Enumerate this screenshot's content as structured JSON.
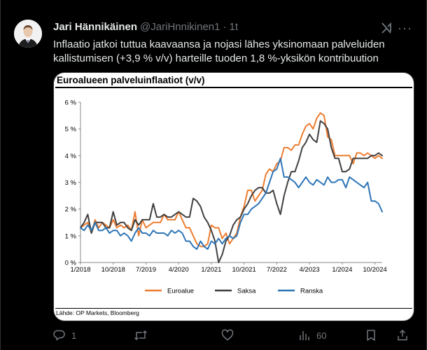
{
  "tweet": {
    "author_name": "Jari Hännikäinen",
    "handle": "@JariHnnikinen1",
    "time": "1t",
    "text": "Inflaatio jatkoi tuttua kaavaansa ja nojasi lähes yksinomaan palveluiden kallistumisen (+3,9 % v/v) harteille tuoden 1,8 %-yksikön kontribuution"
  },
  "actions": {
    "reply_count": "1",
    "retweet_count": "",
    "like_count": "",
    "views_count": "60"
  },
  "chart_data": {
    "type": "line",
    "title": "Euroalueen palveluinflaatiot (v/v)",
    "source": "Lähde: OP Markets, Bloomberg",
    "xlabel": "",
    "ylabel": "",
    "ylim": [
      0,
      6
    ],
    "yticks": [
      "0 %",
      "1 %",
      "2 %",
      "3 %",
      "4 %",
      "5 %",
      "6 %"
    ],
    "xticks": [
      "1/2018",
      "10/2018",
      "7/2019",
      "4/2020",
      "1/2021",
      "10/2021",
      "7/2022",
      "4/2023",
      "1/2024",
      "10/2024"
    ],
    "x_start": "2018-01",
    "x_end": "2024-12",
    "grid": false,
    "legend_position": "bottom",
    "series": [
      {
        "name": "Euroalue",
        "color": "#ed7d31",
        "values": [
          1.3,
          1.4,
          1.5,
          1.1,
          1.6,
          1.3,
          1.5,
          1.4,
          1.3,
          1.6,
          1.3,
          1.4,
          1.3,
          1.4,
          1.2,
          1.9,
          1.0,
          1.6,
          1.3,
          1.4,
          1.5,
          1.5,
          1.5,
          1.8,
          1.6,
          1.6,
          1.6,
          1.9,
          1.6,
          1.3,
          1.3,
          1.0,
          0.7,
          0.6,
          0.6,
          0.7,
          1.4,
          1.3,
          1.3,
          0.9,
          1.1,
          0.7,
          0.9,
          1.1,
          1.7,
          2.1,
          2.7,
          2.7,
          2.3,
          2.5,
          2.7,
          3.3,
          3.5,
          3.4,
          3.7,
          3.8,
          4.3,
          4.3,
          4.2,
          4.4,
          4.4,
          4.8,
          5.1,
          5.2,
          5.0,
          5.4,
          5.6,
          5.5,
          4.7,
          4.6,
          4.0,
          4.0,
          4.0,
          4.0,
          4.0,
          3.7,
          4.1,
          4.1,
          4.0,
          4.1,
          4.0,
          3.9,
          4.0,
          3.9
        ]
      },
      {
        "name": "Saksa",
        "color": "#404040",
        "values": [
          1.3,
          1.5,
          1.8,
          1.1,
          1.5,
          1.5,
          1.5,
          1.3,
          1.3,
          1.9,
          1.4,
          1.5,
          1.5,
          1.3,
          1.2,
          1.6,
          1.4,
          1.6,
          1.6,
          1.6,
          2.2,
          1.7,
          1.7,
          1.8,
          1.7,
          1.7,
          1.8,
          1.9,
          1.8,
          1.7,
          1.7,
          2.4,
          2.3,
          2.1,
          1.7,
          1.5,
          1.2,
          0.8,
          0.0,
          0.3,
          0.8,
          1.0,
          1.4,
          1.6,
          1.7,
          2.0,
          2.2,
          2.5,
          2.7,
          2.8,
          2.8,
          2.6,
          2.6,
          2.7,
          2.2,
          1.8,
          2.5,
          3.0,
          3.4,
          3.4,
          3.8,
          4.3,
          4.5,
          4.8,
          4.6,
          4.5,
          5.3,
          5.2,
          5.0,
          4.3,
          3.9,
          3.9,
          3.4,
          3.4,
          3.5,
          3.9,
          3.9,
          3.9,
          3.9,
          3.9,
          4.0,
          4.0,
          4.1,
          4.0
        ]
      },
      {
        "name": "Ranska",
        "color": "#2e75b6",
        "values": [
          1.3,
          1.2,
          1.4,
          1.2,
          1.5,
          1.2,
          1.2,
          1.3,
          1.1,
          1.2,
          1.2,
          1.0,
          1.1,
          1.0,
          0.8,
          1.1,
          1.3,
          1.1,
          1.1,
          1.0,
          1.2,
          1.1,
          1.1,
          1.1,
          1.0,
          1.2,
          1.1,
          1.2,
          1.1,
          0.8,
          0.8,
          0.6,
          0.5,
          0.8,
          0.6,
          0.5,
          0.8,
          0.7,
          0.9,
          0.7,
          0.9,
          1.0,
          0.9,
          1.0,
          1.5,
          1.8,
          1.8,
          2.0,
          2.1,
          2.2,
          2.4,
          2.6,
          3.0,
          3.4,
          3.5,
          3.9,
          3.2,
          3.2,
          3.1,
          3.0,
          2.8,
          3.0,
          3.2,
          3.0,
          2.9,
          3.1,
          3.0,
          2.9,
          3.2,
          3.0,
          3.0,
          3.1,
          3.1,
          2.8,
          3.2,
          3.1,
          3.0,
          2.9,
          2.8,
          3.0,
          2.3,
          2.3,
          2.2,
          1.9
        ]
      }
    ]
  }
}
